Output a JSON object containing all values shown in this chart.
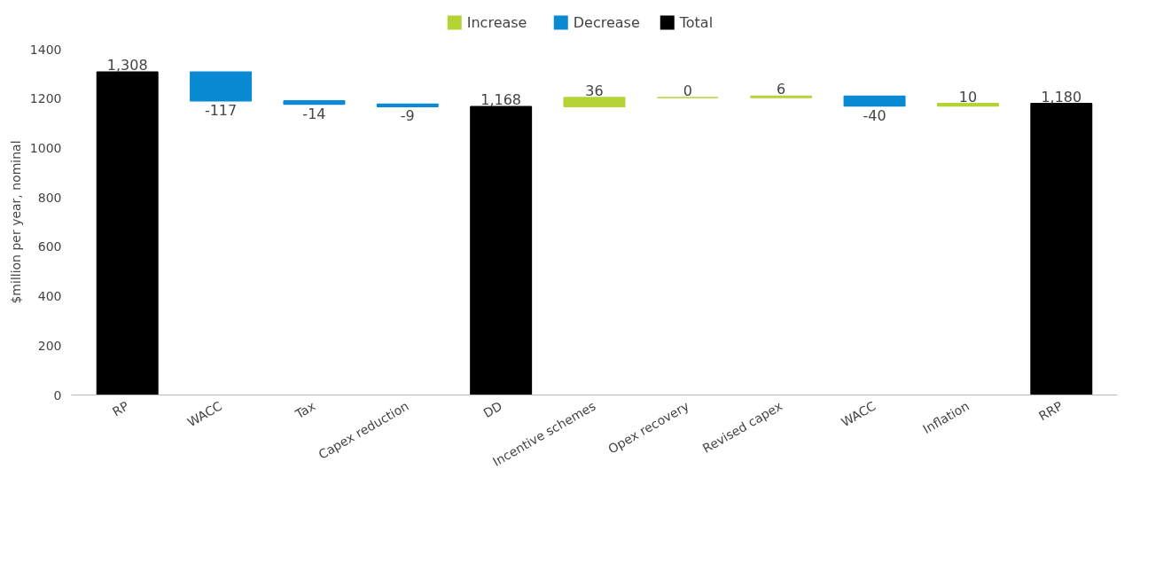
{
  "chart_data": {
    "type": "bar",
    "ylabel": "$million per year, nominal",
    "categories": [
      "RP",
      "WACC",
      "Tax",
      "Capex reduction",
      "DD",
      "Incentive schemes",
      "Opex recovery",
      "Revised capex",
      "WACC",
      "Inflation",
      "RRP"
    ],
    "series": [
      {
        "name": "Increase",
        "color": "#b5d334",
        "base": [
          null,
          null,
          null,
          null,
          null,
          1168,
          1204,
          1204,
          null,
          1170,
          null
        ],
        "values": [
          null,
          null,
          null,
          null,
          null,
          36,
          0,
          6,
          null,
          10,
          null
        ],
        "value_labels": [
          null,
          null,
          null,
          null,
          null,
          "36",
          "0",
          "6",
          null,
          "10",
          null
        ]
      },
      {
        "name": "Decrease",
        "color": "#0a8ad2",
        "base": [
          null,
          1308,
          1191,
          1177,
          null,
          null,
          null,
          null,
          1210,
          null,
          null
        ],
        "values": [
          null,
          -117,
          -14,
          -9,
          null,
          null,
          null,
          null,
          -40,
          null,
          null
        ],
        "value_labels": [
          null,
          "-117",
          "-14",
          "-9",
          null,
          null,
          null,
          null,
          "-40",
          null,
          null
        ]
      },
      {
        "name": "Total",
        "color": "#000000",
        "base": [
          0,
          null,
          null,
          null,
          0,
          null,
          null,
          null,
          null,
          null,
          0
        ],
        "values": [
          1308,
          null,
          null,
          null,
          1168,
          null,
          null,
          null,
          null,
          null,
          1180
        ],
        "value_labels": [
          "1,308",
          null,
          null,
          null,
          "1,168",
          null,
          null,
          null,
          null,
          null,
          "1,180"
        ]
      }
    ],
    "ylim": [
      0,
      1400
    ],
    "yticks": [
      0,
      200,
      400,
      600,
      800,
      1000,
      1200,
      1400
    ],
    "legend": "top",
    "grid": false
  }
}
